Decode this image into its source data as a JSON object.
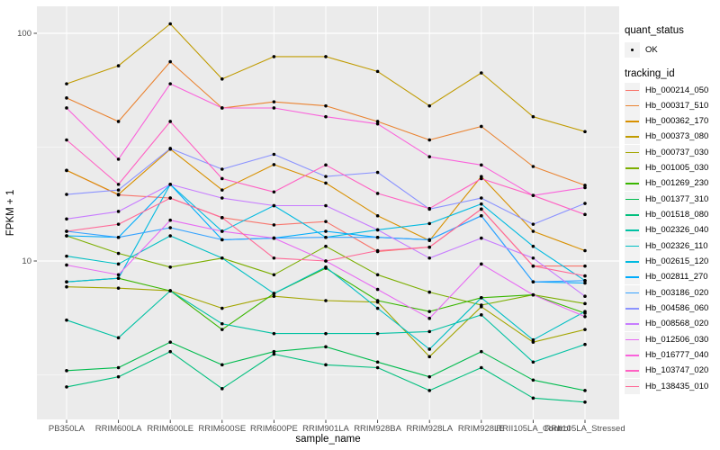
{
  "panel": {
    "bg": "#EBEBEB",
    "gridline_color": "#FFFFFF",
    "point_color": "#000000"
  },
  "y_axis": {
    "title": "FPKM + 1",
    "scale": "log10",
    "tick_labels": [
      "100",
      "10"
    ],
    "tick_values": [
      100,
      10
    ],
    "minor_gridline_values": [
      31.62,
      3.162
    ]
  },
  "x_axis": {
    "title": "sample_name"
  },
  "legend": {
    "quant_status": {
      "title": "quant_status",
      "items": [
        {
          "label": "OK",
          "marker": "point"
        }
      ]
    },
    "tracking_id": {
      "title": "tracking_id"
    }
  },
  "chart_data": {
    "type": "line",
    "title": "",
    "xlabel": "sample_name",
    "ylabel": "FPKM + 1",
    "yscale": "log10",
    "ylim": [
      2.0,
      131
    ],
    "grid": true,
    "legend_position": "right",
    "x": [
      "PB350LA",
      "RRIM600LA",
      "RRIM600LE",
      "RRIM600SE",
      "RRIM600PE",
      "RRIM901LA",
      "RRIM928BA",
      "RRIM928LA",
      "RRIM928LE",
      "RRII105LA_Control",
      "RRII105LA_Stressed"
    ],
    "series": [
      {
        "name": "Hb_000214_050",
        "color": "#F8766D",
        "values": [
          25.0,
          19.5,
          18.9,
          15.5,
          14.4,
          14.9,
          11.0,
          11.5,
          16.9,
          9.5,
          9.5
        ]
      },
      {
        "name": "Hb_000317_510",
        "color": "#EA8331",
        "values": [
          52,
          41,
          75,
          47,
          50,
          48,
          41,
          34,
          39,
          26,
          21.5
        ]
      },
      {
        "name": "Hb_000362_170",
        "color": "#D89000",
        "values": [
          25.0,
          19.6,
          31.0,
          20.5,
          26.5,
          22.0,
          15.8,
          12.3,
          23.5,
          13.5,
          11.1
        ]
      },
      {
        "name": "Hb_000373_080",
        "color": "#C09B00",
        "values": [
          60,
          72,
          110,
          63,
          79,
          79,
          68,
          48,
          67,
          43,
          37
        ]
      },
      {
        "name": "Hb_000737_030",
        "color": "#A3A500",
        "values": [
          7.7,
          7.6,
          7.4,
          6.2,
          7.0,
          6.7,
          6.6,
          3.8,
          6.3,
          4.4,
          5.0
        ]
      },
      {
        "name": "Hb_001005_030",
        "color": "#7CAE00",
        "values": [
          12.9,
          10.8,
          9.4,
          10.3,
          8.7,
          11.6,
          8.7,
          7.3,
          6.4,
          7.1,
          6.5
        ]
      },
      {
        "name": "Hb_001269_230",
        "color": "#39B600",
        "values": [
          8.1,
          8.4,
          7.4,
          5.0,
          7.2,
          9.3,
          6.7,
          6.0,
          6.9,
          7.1,
          5.9
        ]
      },
      {
        "name": "Hb_001377_310",
        "color": "#00BB4E",
        "values": [
          3.3,
          3.4,
          4.4,
          3.5,
          4.0,
          4.2,
          3.6,
          3.1,
          4.0,
          3.0,
          2.7
        ]
      },
      {
        "name": "Hb_001518_080",
        "color": "#00BF7D",
        "values": [
          2.8,
          3.1,
          4.0,
          2.75,
          3.9,
          3.5,
          3.4,
          2.7,
          3.4,
          2.5,
          2.4
        ]
      },
      {
        "name": "Hb_002326_040",
        "color": "#00C1A3",
        "values": [
          5.5,
          4.6,
          7.4,
          5.3,
          4.8,
          4.8,
          4.8,
          4.9,
          5.8,
          3.6,
          4.3
        ]
      },
      {
        "name": "Hb_002326_110",
        "color": "#00BFC4",
        "values": [
          10.5,
          9.7,
          12.9,
          10.3,
          7.2,
          9.4,
          6.2,
          4.1,
          6.9,
          4.5,
          6.0
        ]
      },
      {
        "name": "Hb_002615_120",
        "color": "#00BAE0",
        "values": [
          8.1,
          8.4,
          21.7,
          13.5,
          17.5,
          12.7,
          13.7,
          14.6,
          17.8,
          11.6,
          8.2
        ]
      },
      {
        "name": "Hb_002811_270",
        "color": "#00ACFC",
        "values": [
          12.9,
          12.7,
          21.7,
          12.4,
          12.6,
          13.5,
          12.7,
          12.4,
          15.8,
          8.1,
          8.0
        ]
      },
      {
        "name": "Hb_003186_020",
        "color": "#35A2FF",
        "values": [
          13.5,
          12.7,
          14.0,
          12.4,
          12.6,
          12.7,
          12.7,
          12.4,
          15.8,
          8.1,
          8.2
        ]
      },
      {
        "name": "Hb_004586_060",
        "color": "#8B93FF",
        "values": [
          19.6,
          20.5,
          31.2,
          25.3,
          29.4,
          23.5,
          24.5,
          16.9,
          18.9,
          14.5,
          17.9
        ]
      },
      {
        "name": "Hb_008568_020",
        "color": "#C77CFF",
        "values": [
          15.3,
          16.5,
          21.7,
          18.9,
          17.5,
          17.5,
          13.7,
          10.3,
          12.6,
          10.3,
          7.0
        ]
      },
      {
        "name": "Hb_012506_030",
        "color": "#E76BF3",
        "values": [
          9.6,
          8.7,
          15.1,
          13.5,
          12.6,
          10.0,
          7.5,
          5.6,
          9.7,
          7.1,
          5.7
        ]
      },
      {
        "name": "Hb_016777_040",
        "color": "#FA62DB",
        "values": [
          47,
          28,
          60,
          47,
          47,
          43,
          40,
          28.7,
          26.4,
          19.4,
          21
        ]
      },
      {
        "name": "Hb_103747_020",
        "color": "#FF61C3",
        "values": [
          34,
          21.7,
          41,
          23,
          20.1,
          26.4,
          19.8,
          17.0,
          23.0,
          19.4,
          16.0
        ]
      },
      {
        "name": "Hb_138435_010",
        "color": "#FF6A98",
        "values": [
          13.5,
          14.5,
          18.9,
          15.5,
          10.3,
          10.0,
          11.1,
          11.5,
          16.9,
          9.5,
          8.6
        ]
      }
    ]
  }
}
